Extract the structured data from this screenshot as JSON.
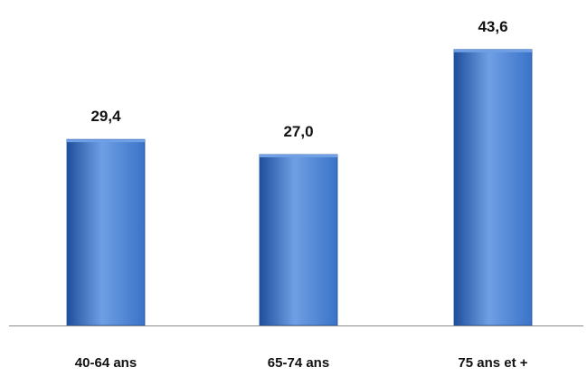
{
  "chart_data": {
    "type": "bar",
    "categories": [
      "40-64 ans",
      "65-74 ans",
      "75 ans et +"
    ],
    "values": [
      29.4,
      27.0,
      43.6
    ],
    "value_labels": [
      "29,4",
      "27,0",
      "43,6"
    ],
    "title": "",
    "xlabel": "",
    "ylabel": "",
    "ylim": [
      0,
      50
    ],
    "grid": false,
    "legend": "none",
    "bar_color": "#3a73c8",
    "bar_color_light": "#6f9fe4",
    "bar_color_dark": "#1f4f9c"
  }
}
